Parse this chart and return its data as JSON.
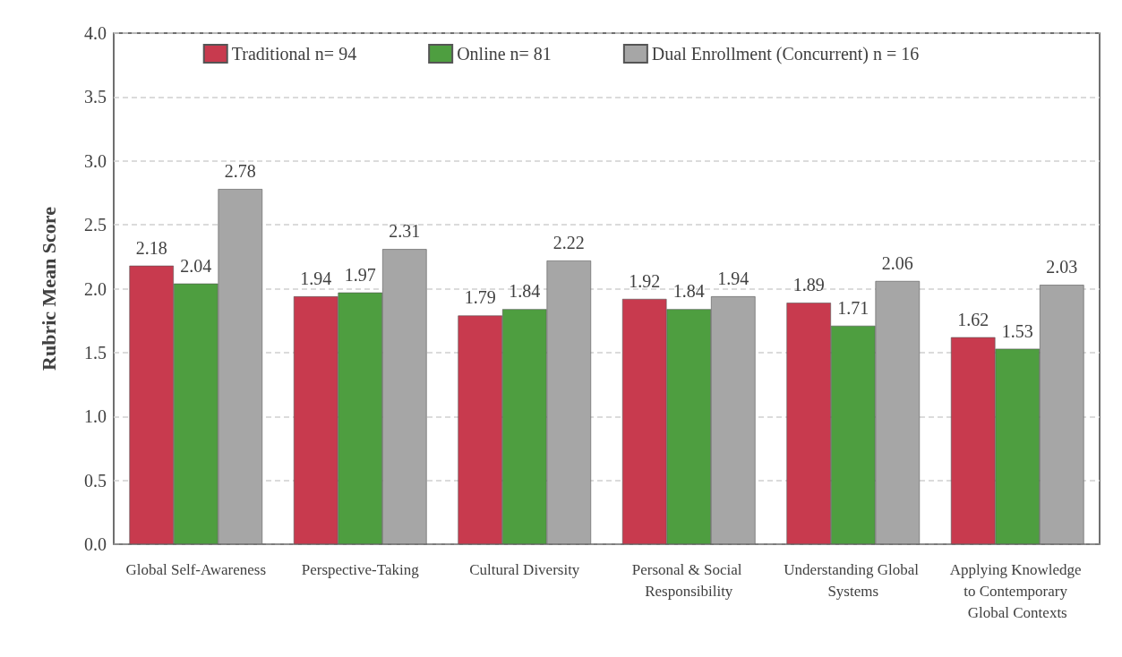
{
  "chart_data": {
    "type": "bar",
    "ylabel": "Rubric Mean Score",
    "categories": [
      "Global Self-Awareness",
      "Perspective-Taking",
      "Cultural Diversity",
      "Personal & Social Responsibility",
      "Understanding Global Systems",
      "Applying Knowledge to Contemporary Global Contexts"
    ],
    "series": [
      {
        "name": "Traditional n= 94",
        "color": "#c83a4e",
        "values": [
          2.18,
          1.94,
          1.79,
          1.92,
          1.89,
          1.62
        ]
      },
      {
        "name": "Online n= 81",
        "color": "#4e9e40",
        "values": [
          2.04,
          1.97,
          1.84,
          1.84,
          1.71,
          1.53
        ]
      },
      {
        "name": "Dual Enrollment (Concurrent) n = 16",
        "color": "#a6a6a6",
        "values": [
          2.78,
          2.31,
          2.22,
          1.94,
          2.06,
          2.03
        ]
      }
    ],
    "ylim": [
      0,
      4
    ],
    "yticks": [
      "0.0",
      "0.5",
      "1.0",
      "1.5",
      "2.0",
      "2.5",
      "3.0",
      "3.5",
      "4.0"
    ],
    "grid": "y",
    "legend": "top",
    "data_labels": true
  }
}
